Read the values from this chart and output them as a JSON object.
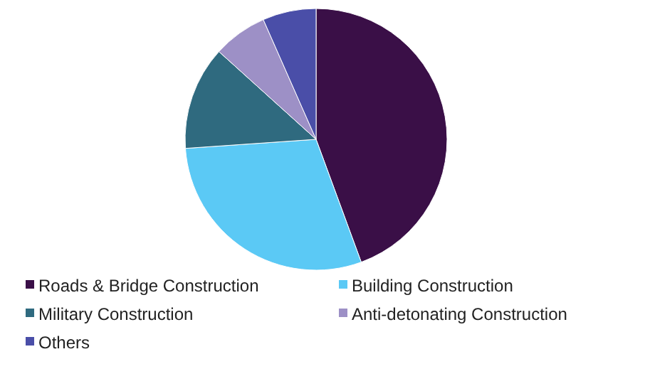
{
  "chart_data": {
    "type": "pie",
    "categories": [
      "Roads & Bridge Construction",
      "Building Construction",
      "Military Construction",
      "Anti-detonating Construction",
      "Others"
    ],
    "values": [
      44.4,
      29.5,
      12.8,
      6.7,
      6.6
    ],
    "colors": [
      "#3a0f47",
      "#5bc9f5",
      "#2f6a7f",
      "#9d90c6",
      "#4a4ea8"
    ],
    "legend": "bottom"
  }
}
